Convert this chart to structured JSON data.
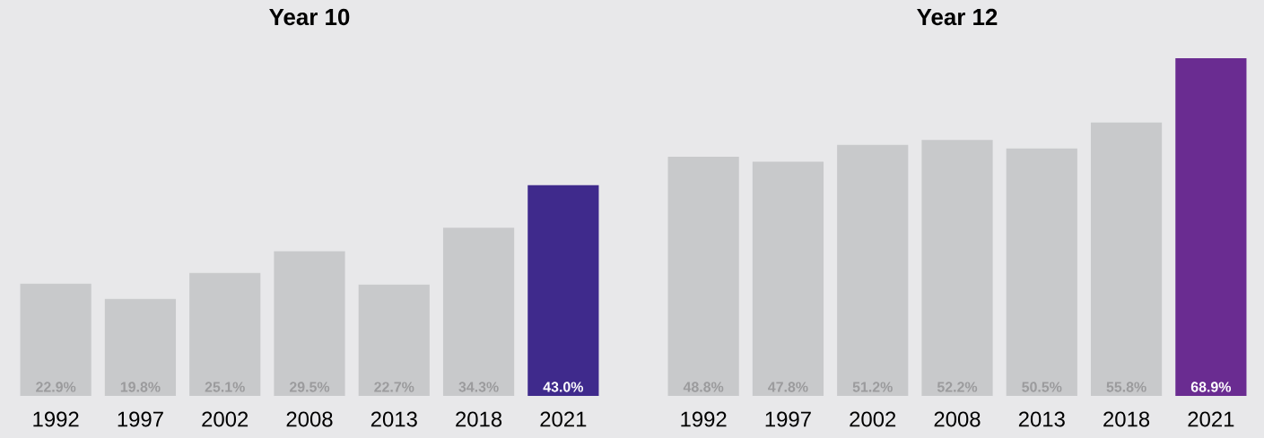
{
  "chart_data": [
    {
      "type": "bar",
      "title": "Year 10",
      "categories": [
        "1992",
        "1997",
        "2002",
        "2008",
        "2013",
        "2018",
        "2021"
      ],
      "values": [
        22.9,
        19.8,
        25.1,
        29.5,
        22.7,
        34.3,
        43.0
      ],
      "colors": [
        "#c8c9cb",
        "#c8c9cb",
        "#c8c9cb",
        "#c8c9cb",
        "#c8c9cb",
        "#c8c9cb",
        "#3f2a8c"
      ],
      "value_labels": [
        "22.9%",
        "19.8%",
        "25.1%",
        "29.5%",
        "22.7%",
        "34.3%",
        "43.0%"
      ]
    },
    {
      "type": "bar",
      "title": "Year 12",
      "categories": [
        "1992",
        "1997",
        "2002",
        "2008",
        "2013",
        "2018",
        "2021"
      ],
      "values": [
        48.8,
        47.8,
        51.2,
        52.2,
        50.5,
        55.8,
        68.9
      ],
      "colors": [
        "#c8c9cb",
        "#c8c9cb",
        "#c8c9cb",
        "#c8c9cb",
        "#c8c9cb",
        "#c8c9cb",
        "#6a2c91"
      ],
      "value_labels": [
        "48.8%",
        "47.8%",
        "51.2%",
        "52.2%",
        "50.5%",
        "55.8%",
        "68.9%"
      ]
    }
  ]
}
